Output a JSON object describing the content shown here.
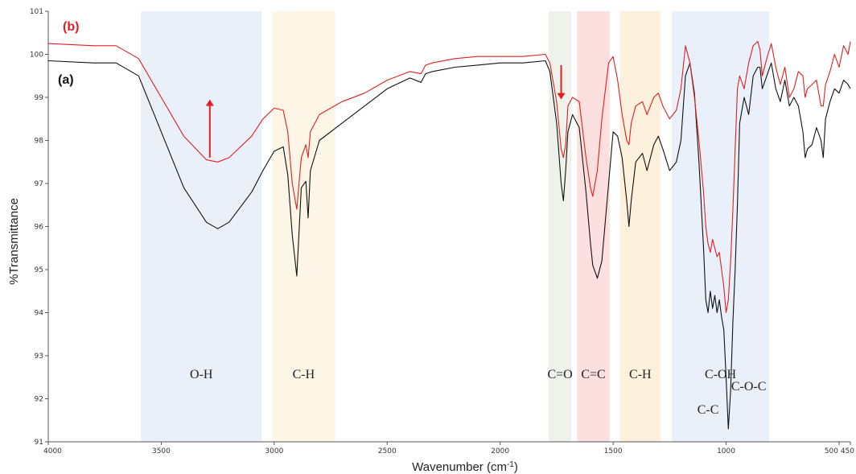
{
  "chart_data": {
    "type": "line",
    "title": "",
    "xlabel": "Wavenumber (cm",
    "xlabel_sup": "-1",
    "xlabel_end": ")",
    "ylabel": "%Transmittance",
    "xlim": [
      4000,
      450
    ],
    "ylim": [
      91,
      101
    ],
    "x_ticks": [
      4000,
      3500,
      3000,
      2500,
      2000,
      1500,
      1000
    ],
    "x_tick_labels": [
      "4000",
      "3500",
      "3000",
      "2500",
      "2000",
      "1500",
      "1000"
    ],
    "x_end_label": "500 450",
    "y_ticks": [
      91,
      92,
      93,
      94,
      95,
      96,
      97,
      98,
      99,
      100,
      101
    ],
    "y_tick_labels": [
      "91",
      "92",
      "93",
      "94",
      "95",
      "96",
      "97",
      "98",
      "99",
      "100",
      "101"
    ],
    "grid": false,
    "bands": [
      {
        "label": "O-H",
        "from": 3590,
        "to": 3055,
        "color": "#e9f0fa"
      },
      {
        "label": "C-H",
        "from": 3010,
        "to": 2730,
        "color": "#fdf5e6"
      },
      {
        "label": "C=O",
        "from": 1785,
        "to": 1685,
        "color": "#edf3ea"
      },
      {
        "label": "C=C",
        "from": 1660,
        "to": 1515,
        "color": "#fce0e0"
      },
      {
        "label": "C-H",
        "from": 1470,
        "to": 1290,
        "color": "#fdf0dc"
      },
      {
        "label": "C-OH",
        "from": 1240,
        "to": 810,
        "color": "#e9f0fa"
      }
    ],
    "annotations": [
      {
        "text": "C-C",
        "x": 1080,
        "y": 91.65
      },
      {
        "text": "C-O-C",
        "x": 900,
        "y": 92.2
      }
    ],
    "series": [
      {
        "name": "(a)",
        "color": "#111111",
        "x": [
          4000,
          3800,
          3700,
          3600,
          3500,
          3400,
          3300,
          3250,
          3200,
          3100,
          3050,
          3000,
          2960,
          2940,
          2920,
          2900,
          2880,
          2860,
          2850,
          2840,
          2800,
          2700,
          2600,
          2500,
          2400,
          2350,
          2330,
          2300,
          2200,
          2100,
          2000,
          1900,
          1800,
          1780,
          1750,
          1730,
          1720,
          1710,
          1700,
          1680,
          1650,
          1620,
          1600,
          1590,
          1570,
          1550,
          1520,
          1500,
          1480,
          1460,
          1440,
          1430,
          1420,
          1400,
          1370,
          1350,
          1320,
          1300,
          1280,
          1250,
          1220,
          1200,
          1180,
          1160,
          1140,
          1120,
          1100,
          1090,
          1080,
          1070,
          1060,
          1050,
          1040,
          1030,
          1020,
          1010,
          1000,
          990,
          980,
          970,
          960,
          950,
          940,
          920,
          900,
          880,
          860,
          850,
          840,
          820,
          800,
          780,
          760,
          740,
          720,
          700,
          680,
          660,
          650,
          640,
          620,
          600,
          580,
          570,
          560,
          540,
          520,
          500,
          480,
          460,
          450
        ],
        "y": [
          99.85,
          99.8,
          99.8,
          99.5,
          98.2,
          96.9,
          96.1,
          95.95,
          96.1,
          96.8,
          97.3,
          97.75,
          97.85,
          97.2,
          95.8,
          94.85,
          96.9,
          97.05,
          96.2,
          97.3,
          98.0,
          98.4,
          98.8,
          99.2,
          99.45,
          99.35,
          99.55,
          99.6,
          99.7,
          99.75,
          99.8,
          99.8,
          99.85,
          99.6,
          98.4,
          97.0,
          96.6,
          97.3,
          98.2,
          98.6,
          98.3,
          96.8,
          95.6,
          95.1,
          94.8,
          95.2,
          97.0,
          98.2,
          98.1,
          97.6,
          96.6,
          96.0,
          96.6,
          97.5,
          97.7,
          97.3,
          97.9,
          98.1,
          97.8,
          97.3,
          97.5,
          98.0,
          99.5,
          99.8,
          99.1,
          97.5,
          95.5,
          94.3,
          94.0,
          94.5,
          94.1,
          94.4,
          94.0,
          94.3,
          93.9,
          93.6,
          92.5,
          91.3,
          92.2,
          93.8,
          95.0,
          96.5,
          98.4,
          99.0,
          98.6,
          99.5,
          99.7,
          99.7,
          99.2,
          99.5,
          99.8,
          99.2,
          98.9,
          99.4,
          98.8,
          99.0,
          98.8,
          98.2,
          97.6,
          97.8,
          97.9,
          98.3,
          98.0,
          97.6,
          98.5,
          98.9,
          99.2,
          99.1,
          99.4,
          99.3,
          99.2
        ]
      },
      {
        "name": "(b)",
        "color": "#e02020",
        "x": [
          4000,
          3800,
          3700,
          3600,
          3500,
          3400,
          3300,
          3250,
          3200,
          3100,
          3050,
          3000,
          2960,
          2940,
          2920,
          2900,
          2880,
          2860,
          2850,
          2840,
          2800,
          2700,
          2600,
          2500,
          2400,
          2350,
          2330,
          2300,
          2200,
          2100,
          2000,
          1900,
          1800,
          1780,
          1750,
          1730,
          1720,
          1710,
          1700,
          1680,
          1650,
          1620,
          1600,
          1590,
          1570,
          1550,
          1520,
          1500,
          1480,
          1460,
          1440,
          1430,
          1420,
          1400,
          1370,
          1350,
          1320,
          1300,
          1280,
          1250,
          1220,
          1200,
          1180,
          1160,
          1140,
          1120,
          1100,
          1090,
          1080,
          1070,
          1060,
          1050,
          1040,
          1030,
          1020,
          1010,
          1000,
          990,
          980,
          970,
          960,
          950,
          940,
          920,
          900,
          880,
          860,
          850,
          840,
          820,
          800,
          780,
          760,
          740,
          720,
          700,
          680,
          660,
          650,
          640,
          620,
          600,
          580,
          570,
          560,
          540,
          520,
          500,
          480,
          460,
          450
        ],
        "y": [
          100.25,
          100.2,
          100.2,
          99.9,
          99.0,
          98.1,
          97.55,
          97.5,
          97.6,
          98.1,
          98.5,
          98.75,
          98.7,
          98.2,
          97.0,
          96.4,
          97.6,
          97.9,
          97.6,
          98.2,
          98.6,
          98.9,
          99.1,
          99.4,
          99.6,
          99.55,
          99.75,
          99.8,
          99.9,
          99.95,
          99.95,
          99.95,
          100.0,
          99.8,
          98.9,
          97.8,
          97.6,
          97.9,
          98.8,
          99.0,
          98.9,
          97.6,
          96.9,
          96.7,
          97.3,
          98.5,
          99.8,
          99.95,
          99.4,
          98.6,
          98.0,
          97.9,
          98.4,
          98.8,
          98.9,
          98.6,
          99.0,
          99.1,
          98.8,
          98.5,
          98.7,
          99.2,
          100.2,
          99.8,
          99.0,
          98.0,
          96.8,
          96.0,
          95.6,
          95.4,
          95.7,
          95.5,
          95.3,
          95.4,
          95.0,
          94.6,
          94.0,
          94.3,
          95.2,
          96.4,
          97.8,
          99.2,
          99.5,
          99.2,
          99.8,
          100.2,
          100.3,
          100.1,
          99.5,
          99.9,
          100.25,
          99.7,
          99.3,
          99.7,
          99.0,
          99.2,
          99.6,
          99.5,
          99.0,
          99.2,
          99.3,
          99.4,
          98.8,
          98.8,
          99.3,
          99.6,
          100.0,
          99.7,
          100.2,
          100.0,
          100.3
        ]
      }
    ],
    "arrows": [
      {
        "x": 3285,
        "y_from": 97.6,
        "y_to": 98.95,
        "color": "#e02020"
      },
      {
        "x": 1730,
        "y_from": 99.75,
        "y_to": 98.95,
        "color": "#e02020"
      }
    ]
  }
}
